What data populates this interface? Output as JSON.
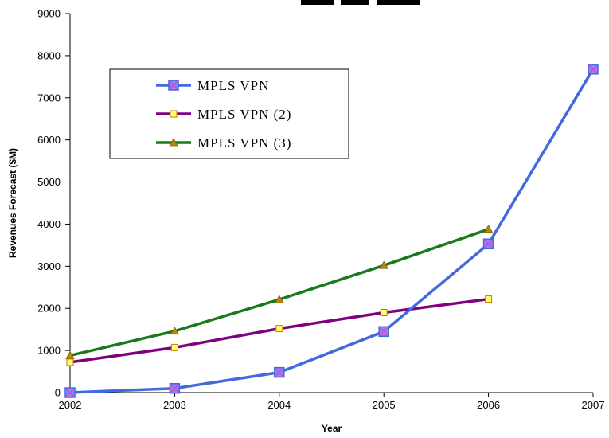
{
  "chart_data": {
    "type": "line",
    "x": [
      2002,
      2003,
      2004,
      2005,
      2006,
      2007
    ],
    "xlabel": "Year",
    "ylabel": "Revenues Forecast ($M)",
    "xlim": [
      2002,
      2007
    ],
    "ylim": [
      0,
      9000
    ],
    "y_ticks": [
      0,
      1000,
      2000,
      3000,
      4000,
      5000,
      6000,
      7000,
      8000,
      9000
    ],
    "grid": false,
    "legend_position": "upper-left",
    "series": [
      {
        "name": "MPLS  VPN",
        "color": "#4169e1",
        "marker": "square-x",
        "values": [
          0,
          100,
          480,
          1450,
          3530,
          7680
        ]
      },
      {
        "name": "MPLS  VPN (2)",
        "color": "#800080",
        "marker": "square",
        "values": [
          720,
          1070,
          1520,
          1900,
          2220,
          null
        ]
      },
      {
        "name": "MPLS  VPN (3)",
        "color": "#1a7a1a",
        "marker": "triangle",
        "values": [
          880,
          1460,
          2210,
          3020,
          3880,
          null
        ]
      }
    ]
  }
}
